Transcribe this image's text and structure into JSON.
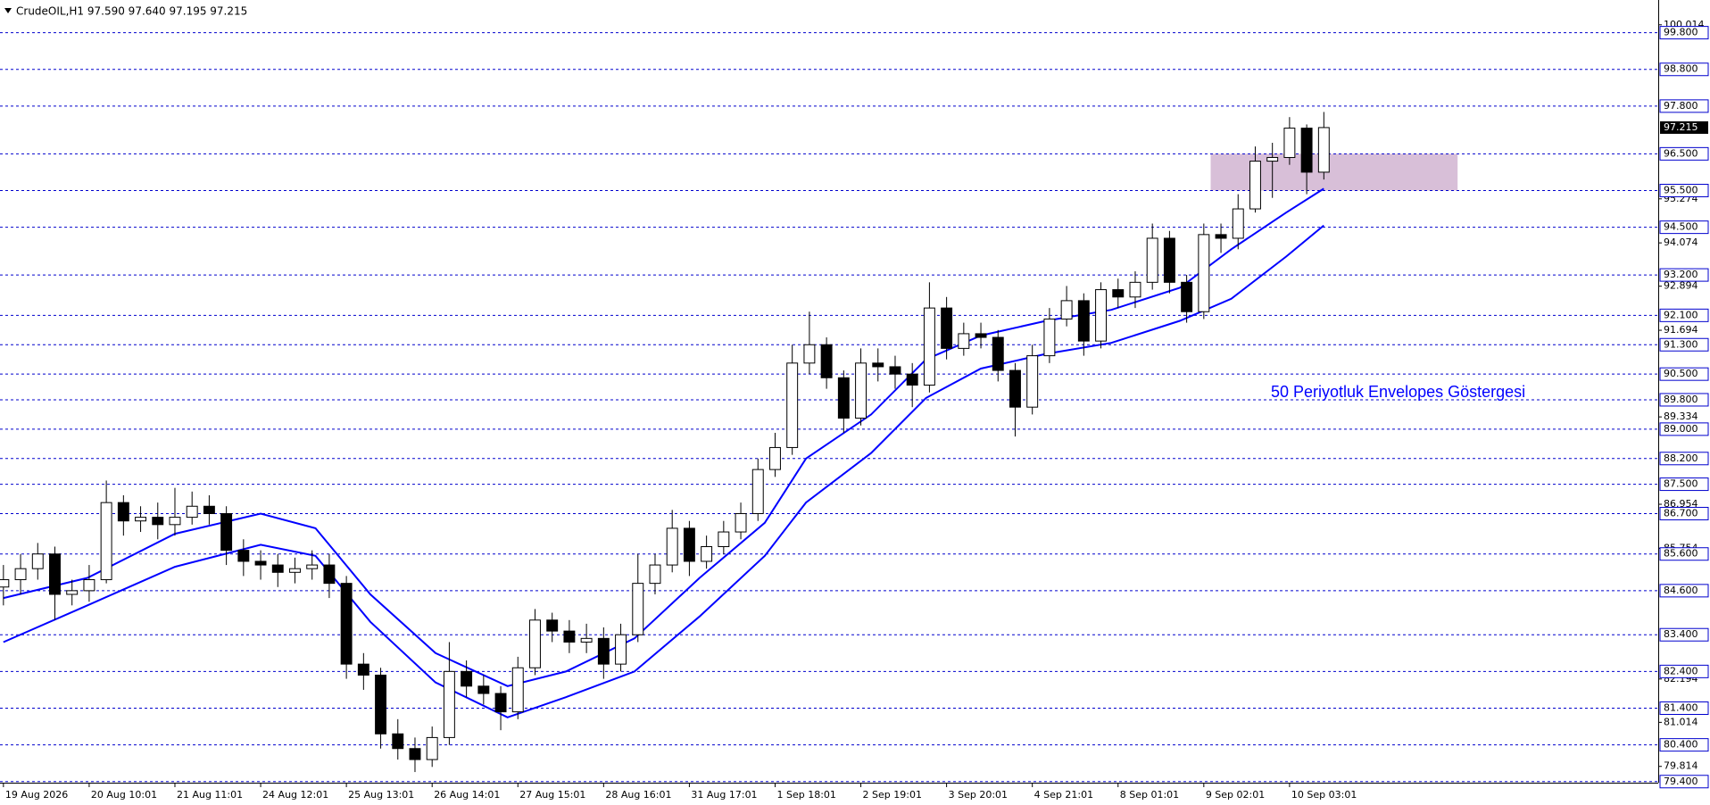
{
  "chart_data": {
    "type": "candlestick",
    "header": "CrudeOIL,H1  97.590 97.640 97.195 97.215",
    "annotation": "50 Periyotluk Envelopes Göstergesi",
    "up_color": "#ffffff",
    "down_color": "#000000",
    "x": [
      0,
      5,
      10,
      15,
      20,
      25,
      30,
      35,
      40,
      45,
      50,
      55,
      60,
      65,
      70,
      75,
      80,
      85,
      90,
      95,
      100,
      105,
      110,
      115,
      120,
      125,
      130,
      135,
      140,
      145,
      150,
      155,
      160,
      165,
      170,
      175,
      180,
      185,
      190,
      195,
      200,
      205,
      210,
      215,
      220,
      225,
      230,
      235,
      240,
      245,
      250,
      255,
      260,
      265,
      270,
      275,
      280,
      285,
      290,
      295,
      300,
      305,
      310,
      315,
      320,
      325,
      330,
      335,
      340,
      345,
      350,
      355,
      360,
      365,
      370,
      375,
      380,
      385
    ],
    "open": [
      84.7,
      84.9,
      85.2,
      85.6,
      84.5,
      84.6,
      84.9,
      87.0,
      86.5,
      86.6,
      86.4,
      86.6,
      86.9,
      86.7,
      85.7,
      85.4,
      85.3,
      85.1,
      85.2,
      85.3,
      84.8,
      82.6,
      82.3,
      80.7,
      80.3,
      80.0,
      80.6,
      82.4,
      82.0,
      81.8,
      81.3,
      82.5,
      83.8,
      83.5,
      83.2,
      83.3,
      82.6,
      83.4,
      84.8,
      85.3,
      86.3,
      85.4,
      85.8,
      86.2,
      86.7,
      87.9,
      88.5,
      90.8,
      91.3,
      90.4,
      89.3,
      90.8,
      90.7,
      90.5,
      90.2,
      92.3,
      91.2,
      91.6,
      91.5,
      90.6,
      89.6,
      91.0,
      92.0,
      92.5,
      91.4,
      92.8,
      92.6,
      93.0,
      94.2,
      93.0,
      92.2,
      94.3,
      94.2,
      95.0,
      96.3,
      96.4,
      97.2,
      96.0
    ],
    "high": [
      85.3,
      85.6,
      85.9,
      85.8,
      84.9,
      85.3,
      87.6,
      87.2,
      86.9,
      87.0,
      87.4,
      87.3,
      87.2,
      86.9,
      86.0,
      85.7,
      85.6,
      85.5,
      85.7,
      85.6,
      85.0,
      82.9,
      82.5,
      81.1,
      80.6,
      80.9,
      83.2,
      82.7,
      82.3,
      82.0,
      82.8,
      84.1,
      84.0,
      83.8,
      83.7,
      83.6,
      83.7,
      85.6,
      85.6,
      86.8,
      86.5,
      86.1,
      86.5,
      87.0,
      88.2,
      88.9,
      91.3,
      92.2,
      91.5,
      90.6,
      91.2,
      91.2,
      91.0,
      90.8,
      93.0,
      92.6,
      91.9,
      91.9,
      91.7,
      90.8,
      91.3,
      92.3,
      92.9,
      92.7,
      93.0,
      93.1,
      93.3,
      94.6,
      94.4,
      93.2,
      94.6,
      94.6,
      95.4,
      96.7,
      96.8,
      97.5,
      97.3,
      97.64
    ],
    "low": [
      84.2,
      84.5,
      84.9,
      83.8,
      84.2,
      84.3,
      84.8,
      86.1,
      86.2,
      86.0,
      86.1,
      86.4,
      86.4,
      85.3,
      85.0,
      84.9,
      84.7,
      84.8,
      84.9,
      84.4,
      82.2,
      81.9,
      80.3,
      80.0,
      79.66,
      79.8,
      80.4,
      81.7,
      81.5,
      80.8,
      81.1,
      82.3,
      83.2,
      82.9,
      82.9,
      82.2,
      82.4,
      83.2,
      84.5,
      85.1,
      85.0,
      85.2,
      85.6,
      86.0,
      86.5,
      87.7,
      88.3,
      90.5,
      90.1,
      88.9,
      89.1,
      90.3,
      90.1,
      89.6,
      90.0,
      90.9,
      91.0,
      91.2,
      90.3,
      88.8,
      89.4,
      90.8,
      91.8,
      91.0,
      91.2,
      92.3,
      92.3,
      92.8,
      92.7,
      91.9,
      92.0,
      93.8,
      93.9,
      94.9,
      95.3,
      96.2,
      95.4,
      95.8
    ],
    "close": [
      84.9,
      85.2,
      85.6,
      84.5,
      84.6,
      84.9,
      87.0,
      86.5,
      86.6,
      86.4,
      86.6,
      86.9,
      86.7,
      85.7,
      85.4,
      85.3,
      85.1,
      85.2,
      85.3,
      84.8,
      82.6,
      82.3,
      80.7,
      80.3,
      80.0,
      80.6,
      82.4,
      82.0,
      81.8,
      81.3,
      82.5,
      83.8,
      83.5,
      83.2,
      83.3,
      82.6,
      83.4,
      84.8,
      85.3,
      86.3,
      85.4,
      85.8,
      86.2,
      86.7,
      87.9,
      88.5,
      90.8,
      91.3,
      90.4,
      89.3,
      90.8,
      90.7,
      90.5,
      90.2,
      92.3,
      91.2,
      91.6,
      91.5,
      90.6,
      89.6,
      91.0,
      92.0,
      92.5,
      91.4,
      92.8,
      92.6,
      93.0,
      94.2,
      93.0,
      92.2,
      94.3,
      94.2,
      95.0,
      96.3,
      96.4,
      97.2,
      96.0,
      97.215
    ],
    "envelopes": [
      {
        "color": "#0000ff",
        "x": [
          0,
          24.5,
          50,
          75,
          91,
          107,
          126,
          147,
          164,
          184,
          203,
          222,
          234,
          253,
          269,
          285,
          304,
          323,
          343,
          358,
          374,
          385
        ],
        "values": [
          84.4,
          84.95,
          86.15,
          86.7,
          86.3,
          84.5,
          82.9,
          82.0,
          82.4,
          83.3,
          84.95,
          86.45,
          88.2,
          89.4,
          90.9,
          91.55,
          91.95,
          92.25,
          92.85,
          93.9,
          94.9,
          95.55
        ]
      },
      {
        "color": "#0000ff",
        "x": [
          0,
          24.5,
          50,
          75,
          91,
          107,
          126,
          147,
          164,
          184,
          203,
          222,
          234,
          253,
          269,
          285,
          304,
          323,
          343,
          358,
          374,
          385
        ],
        "values": [
          83.2,
          84.2,
          85.25,
          85.85,
          85.55,
          83.75,
          82.1,
          81.15,
          81.7,
          82.4,
          83.9,
          85.55,
          87.0,
          88.35,
          89.85,
          90.65,
          91.05,
          91.35,
          91.95,
          92.55,
          93.7,
          94.55
        ]
      }
    ],
    "zone": {
      "from": 95.5,
      "to": 96.5,
      "x": [
        352,
        424
      ],
      "color": "#d8bfd8"
    },
    "last_price": 97.215,
    "xlim": [
      -1,
      482.5
    ],
    "ylim": [
      79.37,
      100.69
    ],
    "xticks": [
      {
        "value": 0,
        "label": "19 Aug 2026"
      },
      {
        "value": 25,
        "label": "20 Aug 10:01"
      },
      {
        "value": 50,
        "label": "21 Aug 11:01"
      },
      {
        "value": 75,
        "label": "24 Aug 12:01"
      },
      {
        "value": 100,
        "label": "25 Aug 13:01"
      },
      {
        "value": 125,
        "label": "26 Aug 14:01"
      },
      {
        "value": 150,
        "label": "27 Aug 15:01"
      },
      {
        "value": 175,
        "label": "28 Aug 16:01"
      },
      {
        "value": 200,
        "label": "31 Aug 17:01"
      },
      {
        "value": 225,
        "label": "1 Sep 18:01"
      },
      {
        "value": 250,
        "label": "2 Sep 19:01"
      },
      {
        "value": 275,
        "label": "3 Sep 20:01"
      },
      {
        "value": 300,
        "label": "4 Sep 21:01"
      },
      {
        "value": 325,
        "label": "8 Sep 01:01"
      },
      {
        "value": 350,
        "label": "9 Sep 02:01"
      },
      {
        "value": 375,
        "label": "10 Sep 03:01"
      }
    ],
    "yticks": [
      100.014,
      95.274,
      94.074,
      92.894,
      91.694,
      89.334,
      86.954,
      85.754,
      82.194,
      81.014,
      79.814
    ],
    "levels": [
      {
        "value": 99.8,
        "label": "99.800"
      },
      {
        "value": 98.8,
        "label": "98.800"
      },
      {
        "value": 97.8,
        "label": "97.800"
      },
      {
        "value": 96.5,
        "label": "96.500"
      },
      {
        "value": 95.5,
        "label": "95.500"
      },
      {
        "value": 94.5,
        "label": "94.500"
      },
      {
        "value": 93.2,
        "label": "93.200"
      },
      {
        "value": 92.1,
        "label": "92.100"
      },
      {
        "value": 91.3,
        "label": "91.300"
      },
      {
        "value": 90.5,
        "label": "90.500"
      },
      {
        "value": 89.8,
        "label": "89.800"
      },
      {
        "value": 89.0,
        "label": "89.000"
      },
      {
        "value": 88.2,
        "label": "88.200"
      },
      {
        "value": 87.5,
        "label": "87.500"
      },
      {
        "value": 86.7,
        "label": "86.700"
      },
      {
        "value": 85.6,
        "label": "85.600"
      },
      {
        "value": 84.6,
        "label": "84.600"
      },
      {
        "value": 83.4,
        "label": "83.400"
      },
      {
        "value": 82.4,
        "label": "82.400"
      },
      {
        "value": 81.4,
        "label": "81.400"
      },
      {
        "value": 80.4,
        "label": "80.400"
      },
      {
        "value": 79.4,
        "label": "79.400"
      }
    ],
    "level_color": "#0000cd"
  }
}
